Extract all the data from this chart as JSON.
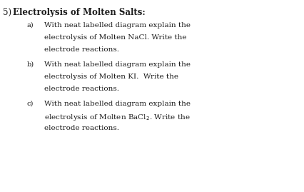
{
  "background_color": "#ffffff",
  "title_prefix": "5) ",
  "title_text": "Electrolysis of Molten Salts:",
  "items": [
    {
      "label": "a)",
      "lines": [
        "With neat labelled diagram explain the",
        "electrolysis of Molten NaCl. Write the",
        "electrode reactions."
      ]
    },
    {
      "label": "b)",
      "lines": [
        "With neat labelled diagram explain the",
        "electrolysis of Molten KI.  Write the",
        "electrode reactions."
      ]
    },
    {
      "label": "c)",
      "lines": [
        "With neat labelled diagram explain the",
        "electrolysis of Molten BaCl",
        "electrode reactions."
      ],
      "line1_suffix": ". Write the",
      "has_subscript": true,
      "subscript_line": 1
    }
  ],
  "title_fontsize": 8.5,
  "body_fontsize": 7.5,
  "label_fontsize": 7.0,
  "text_color": "#1c1c1c",
  "fig_width": 4.26,
  "fig_height": 2.69,
  "dpi": 100
}
